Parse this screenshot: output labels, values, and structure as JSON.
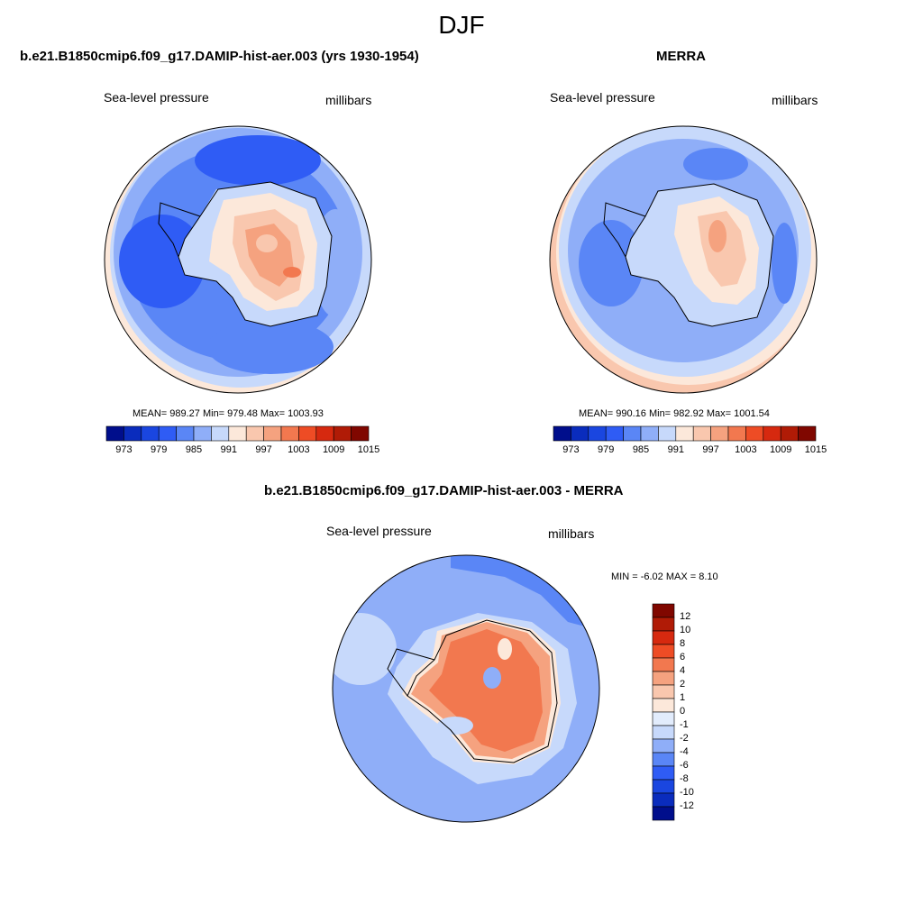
{
  "title": "DJF",
  "panels": {
    "model": {
      "title": "b.e21.B1850cmip6.f09_g17.DAMIP-hist-aer.003 (yrs 1930-1954)",
      "variable": "Sea-level pressure",
      "units": "millibars",
      "stats": "MEAN= 989.27  Min= 979.48  Max= 1003.93"
    },
    "obs": {
      "title": "MERRA",
      "variable": "Sea-level pressure",
      "units": "millibars",
      "stats": "MEAN= 990.16  Min= 982.92  Max= 1001.54"
    },
    "diff": {
      "title": "b.e21.B1850cmip6.f09_g17.DAMIP-hist-aer.003 - MERRA",
      "variable": "Sea-level pressure",
      "units": "millibars",
      "stats": "MIN =  -6.02 MAX =   8.10"
    }
  },
  "colorbar_abs": {
    "labels": [
      "973",
      "979",
      "985",
      "991",
      "997",
      "1003",
      "1009",
      "1015"
    ],
    "colors": [
      "#000e8c",
      "#0a2cbd",
      "#1a46e0",
      "#2f5cf5",
      "#5a86f6",
      "#8faef8",
      "#c7d9fb",
      "#fce8da",
      "#f9c7ae",
      "#f5a27f",
      "#f2784f",
      "#ee4c25",
      "#d6290f",
      "#b01b06",
      "#800700"
    ]
  },
  "colorbar_diff": {
    "labels": [
      "12",
      "10",
      "8",
      "6",
      "4",
      "2",
      "1",
      "0",
      "-1",
      "-2",
      "-4",
      "-6",
      "-8",
      "-10",
      "-12"
    ],
    "colors": [
      "#800700",
      "#b01b06",
      "#d6290f",
      "#ee4c25",
      "#f2784f",
      "#f5a27f",
      "#f9c7ae",
      "#fce8da",
      "#e2ecfc",
      "#c7d9fb",
      "#8faef8",
      "#5a86f6",
      "#2f5cf5",
      "#1a46e0",
      "#0a2cbd",
      "#000e8c"
    ]
  }
}
